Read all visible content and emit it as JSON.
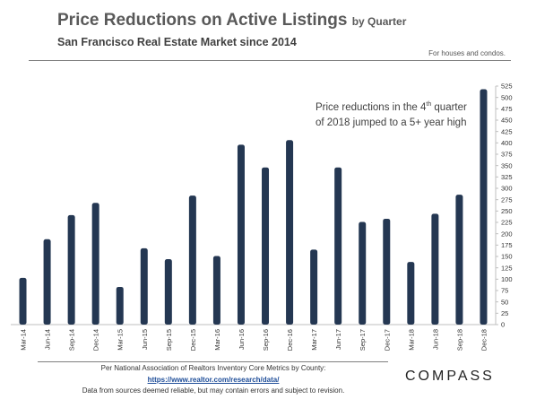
{
  "header": {
    "title": "Price Reductions on Active Listings",
    "title_suffix": "by Quarter",
    "subtitle": "San Francisco Real Estate Market since 2014",
    "note": "For houses and condos."
  },
  "annotation": {
    "line1_pre": "Price reductions in the 4",
    "line1_sup": "th",
    "line1_post": " quarter",
    "line2": "of 2018 jumped to a 5+ year high"
  },
  "footer": {
    "line1": "Per National Association of Realtors Inventory Core Metrics by County:",
    "link": "https://www.realtor.com/research/data/",
    "line3": "Data from sources deemed reliable, but may contain errors and subject to revision."
  },
  "logo": {
    "text": "COMPASS"
  },
  "chart_data": {
    "type": "bar",
    "title": "Price Reductions on Active Listings",
    "categories": [
      "Mar-14",
      "Jun-14",
      "Sep-14",
      "Dec-14",
      "Mar-15",
      "Jun-15",
      "Sep-15",
      "Dec-15",
      "Mar-16",
      "Jun-16",
      "Sep-16",
      "Dec-16",
      "Mar-17",
      "Jun-17",
      "Sep-17",
      "Dec-17",
      "Mar-18",
      "Jun-18",
      "Sep-18",
      "Dec-18"
    ],
    "values": [
      103,
      188,
      241,
      268,
      83,
      168,
      144,
      284,
      151,
      396,
      346,
      406,
      165,
      346,
      226,
      233,
      138,
      244,
      286,
      518
    ],
    "ylim": [
      0,
      525
    ],
    "yticks": [
      0,
      25,
      50,
      75,
      100,
      125,
      150,
      175,
      200,
      225,
      250,
      275,
      300,
      325,
      350,
      375,
      400,
      425,
      450,
      475,
      500,
      525
    ],
    "y_axis_position": "right",
    "grid": false,
    "bar_color": "#243752"
  }
}
